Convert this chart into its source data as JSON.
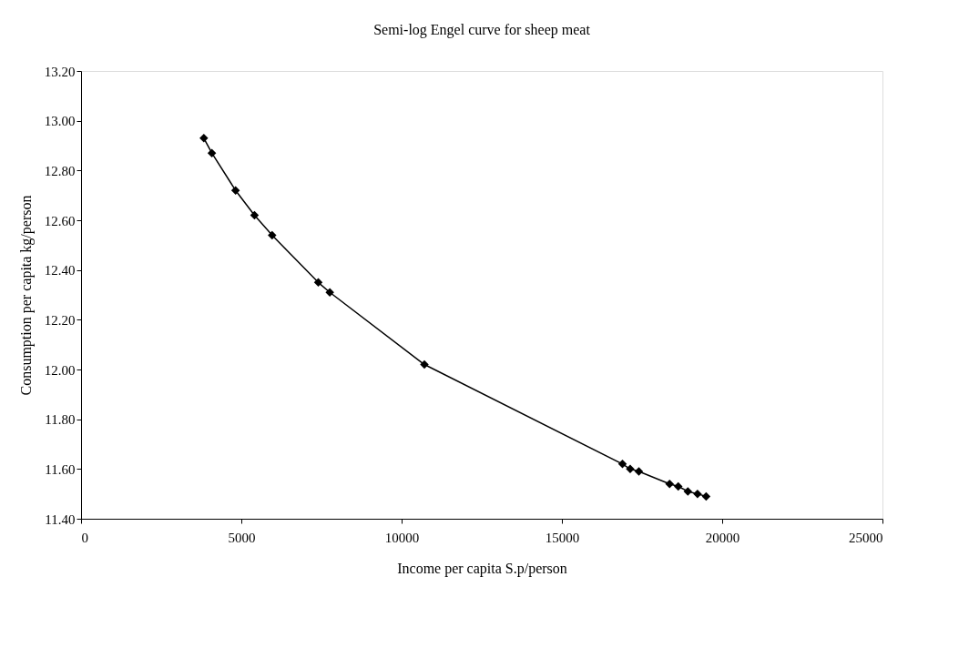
{
  "chart_data": {
    "type": "line",
    "title": "Semi-log Engel curve for sheep meat",
    "xlabel": "Income per capita S.p/person",
    "ylabel": "Consumption per capita kg/person",
    "x": [
      3830,
      4080,
      4820,
      5410,
      5960,
      7400,
      7760,
      10710,
      16890,
      17130,
      17400,
      18360,
      18630,
      18930,
      19230,
      19500
    ],
    "series": [
      {
        "color": "#000000",
        "values": [
          12.93,
          12.87,
          12.72,
          12.62,
          12.54,
          12.35,
          12.31,
          12.02,
          11.62,
          11.6,
          11.59,
          11.54,
          11.53,
          11.51,
          11.5,
          11.49
        ]
      }
    ],
    "xlim": [
      0,
      25000
    ],
    "xticks": [
      0,
      5000,
      10000,
      15000,
      20000,
      25000
    ],
    "ylim": [
      11.4,
      13.2
    ],
    "yticks": [
      {
        "value": 11.4,
        "label": "11.40"
      },
      {
        "value": 11.6,
        "label": "11.60"
      },
      {
        "value": 11.8,
        "label": "11.80"
      },
      {
        "value": 12.0,
        "label": "12.00"
      },
      {
        "value": 12.2,
        "label": "12.20"
      },
      {
        "value": 12.4,
        "label": "12.40"
      },
      {
        "value": 12.6,
        "label": "12.60"
      },
      {
        "value": 12.8,
        "label": "12.80"
      },
      {
        "value": 13.0,
        "label": "13.00"
      },
      {
        "value": 13.2,
        "label": "13.20"
      }
    ],
    "marker": "diamond",
    "line_style": "solid",
    "grid": false,
    "legend": false
  }
}
